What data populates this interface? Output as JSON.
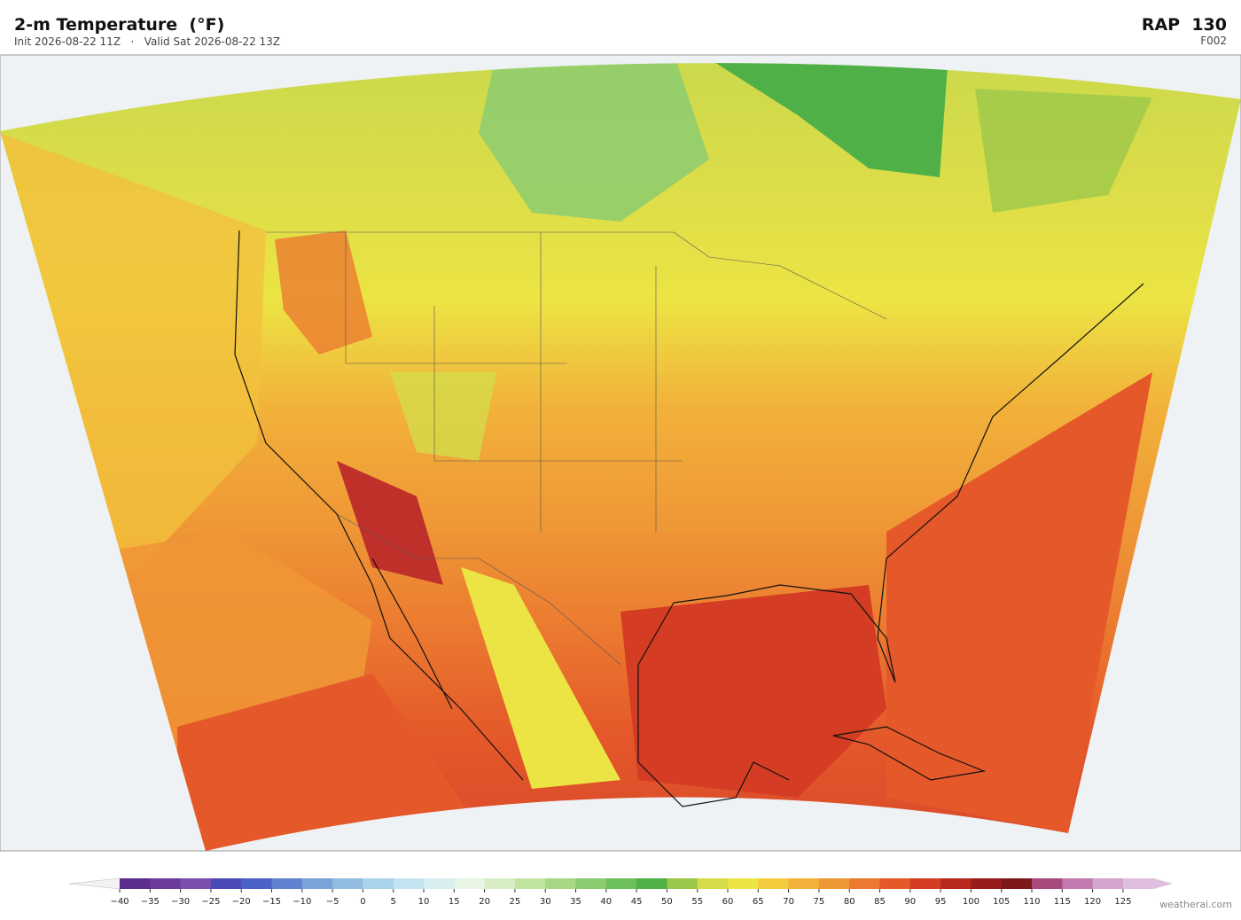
{
  "header": {
    "title": "2-m Temperature  (°F)",
    "subtitle": "Init 2026-08-22 11Z   ·   Valid Sat 2026-08-22 13Z",
    "model": "RAP  130",
    "forecast_hour": "F002"
  },
  "colorbar": {
    "ticks": [
      {
        "value": -40,
        "label": "−40"
      },
      {
        "value": -35,
        "label": "−35"
      },
      {
        "value": -30,
        "label": "−30"
      },
      {
        "value": -25,
        "label": "−25"
      },
      {
        "value": -20,
        "label": "−20"
      },
      {
        "value": -15,
        "label": "−15"
      },
      {
        "value": -10,
        "label": "−10"
      },
      {
        "value": -5,
        "label": "−5"
      },
      0,
      5,
      10,
      15,
      20,
      25,
      30,
      35,
      40,
      45,
      50,
      55,
      60,
      65,
      70,
      75,
      80,
      85,
      90,
      95,
      100,
      105,
      110,
      115,
      120,
      125
    ],
    "colors": [
      "#5b2d8f",
      "#6b3a9a",
      "#7a4fb0",
      "#4a4ab8",
      "#4a62c8",
      "#5f82d0",
      "#7aa3d8",
      "#90bce0",
      "#a9d3ea",
      "#c4e3f0",
      "#d8eef0",
      "#e8f5e4",
      "#d6edc6",
      "#c0e3a0",
      "#a6d886",
      "#8ccc70",
      "#6cbf5a",
      "#4fb048",
      "#9cc84a",
      "#d4dc48",
      "#ece444",
      "#f3cc3e",
      "#f2b23a",
      "#ef9636",
      "#eb7a30",
      "#e4582a",
      "#d43c24",
      "#b8281e",
      "#981c1c",
      "#7c1818",
      "#a84a7c",
      "#c07aae",
      "#d4a4cc",
      "#e0bede"
    ]
  },
  "footer": {
    "credit": "weatherai.com"
  }
}
